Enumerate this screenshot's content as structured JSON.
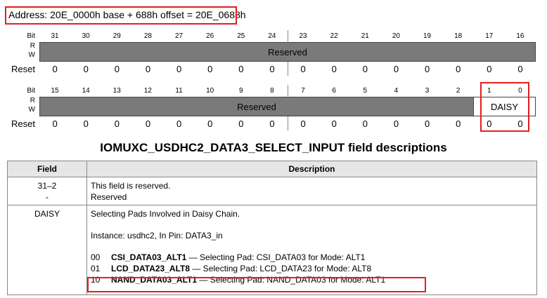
{
  "address": "Address: 20E_0000h base + 688h offset = 20E_0688h",
  "labels": {
    "bit": "Bit",
    "r": "R",
    "w": "W",
    "reset": "Reset"
  },
  "upper": {
    "bits": [
      "31",
      "30",
      "29",
      "28",
      "27",
      "26",
      "25",
      "24",
      "23",
      "22",
      "21",
      "20",
      "19",
      "18",
      "17",
      "16"
    ],
    "field": "Reserved",
    "resets": [
      "0",
      "0",
      "0",
      "0",
      "0",
      "0",
      "0",
      "0",
      "0",
      "0",
      "0",
      "0",
      "0",
      "0",
      "0",
      "0"
    ]
  },
  "lower": {
    "bits": [
      "15",
      "14",
      "13",
      "12",
      "11",
      "10",
      "9",
      "8",
      "7",
      "6",
      "5",
      "4",
      "3",
      "2",
      "1",
      "0"
    ],
    "reserved_field": "Reserved",
    "daisy_field": "DAISY",
    "resets": [
      "0",
      "0",
      "0",
      "0",
      "0",
      "0",
      "0",
      "0",
      "0",
      "0",
      "0",
      "0",
      "0",
      "0",
      "0",
      "0"
    ]
  },
  "title": "IOMUXC_USDHC2_DATA3_SELECT_INPUT field descriptions",
  "table": {
    "headers": {
      "field": "Field",
      "description": "Description"
    },
    "row1": {
      "field_line1": "31–2",
      "field_line2": "-",
      "desc_line1": "This field is reserved.",
      "desc_line2": "Reserved"
    },
    "row2": {
      "field": "DAISY",
      "intro": "Selecting Pads Involved in Daisy Chain.",
      "instance": "Instance: usdhc2, In Pin: DATA3_in",
      "options": [
        {
          "code": "00",
          "name": "CSI_DATA03_ALT1",
          "text": " — Selecting Pad: CSI_DATA03 for Mode: ALT1"
        },
        {
          "code": "01",
          "name": "LCD_DATA23_ALT8",
          "text": " — Selecting Pad: LCD_DATA23 for Mode: ALT8"
        },
        {
          "code": "10",
          "name": "NAND_DATA03_ALT1",
          "text": " — Selecting Pad: NAND_DATA03 for Mode: ALT1"
        }
      ]
    }
  },
  "colors": {
    "highlight": "#e02020",
    "field_fill": "#7a7a7a",
    "header_fill": "#e6e6e6"
  }
}
